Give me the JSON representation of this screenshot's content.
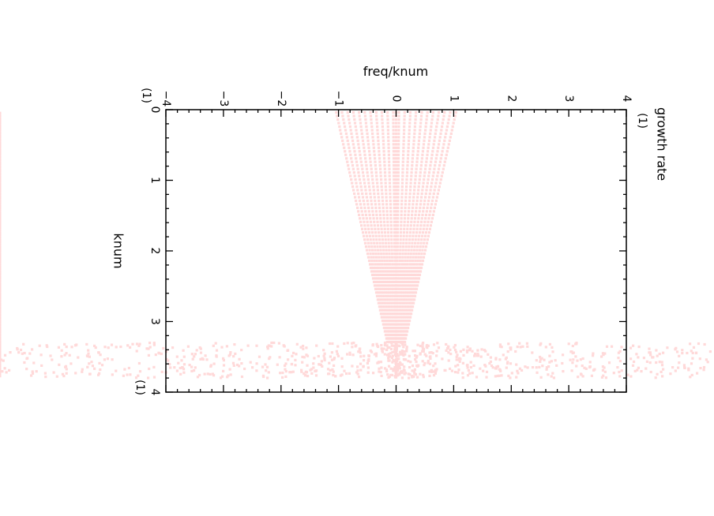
{
  "chart_data": {
    "type": "scatter",
    "orientation": "rotated-90",
    "x_axis": {
      "label": "knum",
      "unit_label": "(1)",
      "range": [
        0,
        4
      ],
      "ticks": [
        "0",
        "1",
        "2",
        "3",
        "4"
      ]
    },
    "y_axis": {
      "label": "freq/knum",
      "unit_label": "(1)",
      "range": [
        -4,
        4
      ],
      "ticks": [
        "−4",
        "−3",
        "−2",
        "−1",
        "0",
        "1",
        "2",
        "3",
        "4"
      ]
    },
    "y2_axis": {
      "label": "growth rate",
      "unit_label": "(1)"
    },
    "grid": false,
    "marker_color": "#ffd9d9",
    "series": [
      {
        "regime": "wave-like",
        "knum_range": [
          0,
          3.3
        ],
        "freq_over_knum_at_0": [
          -1.05,
          1.05
        ],
        "freq_over_knum_at_3.3": [
          -0.15,
          0.15
        ],
        "branches": 22
      },
      {
        "regime": "scattered",
        "knum_range": [
          3.3,
          3.8
        ],
        "freq_over_knum_range": [
          -7,
          5.5
        ]
      }
    ]
  }
}
